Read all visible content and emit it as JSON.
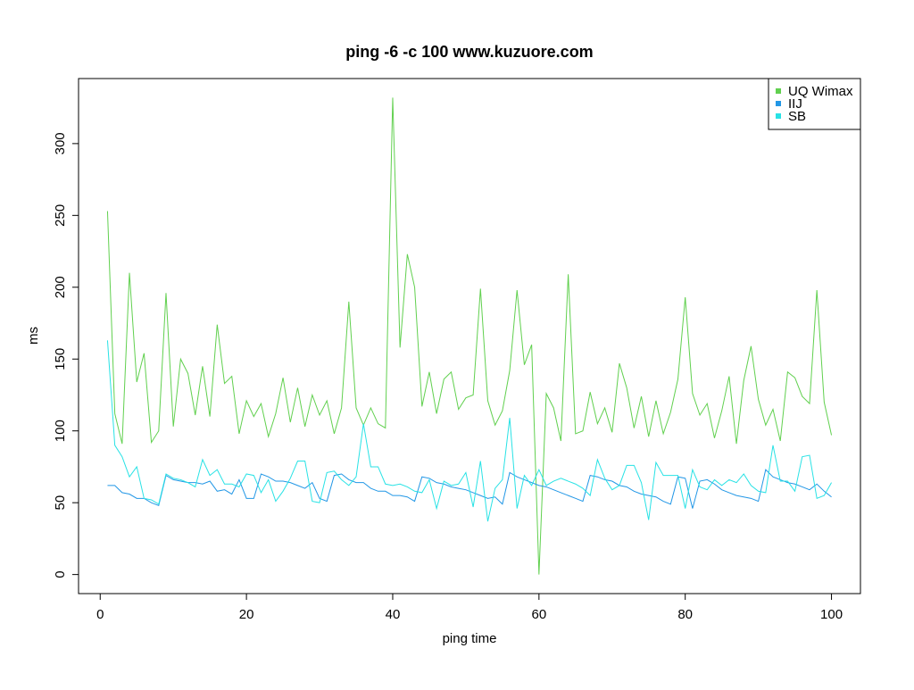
{
  "chart_data": {
    "type": "line",
    "title": "ping -6 -c 100 www.kuzuore.com",
    "x_label": "ping time",
    "y_label": "ms",
    "x": [
      1,
      2,
      3,
      4,
      5,
      6,
      7,
      8,
      9,
      10,
      11,
      12,
      13,
      14,
      15,
      16,
      17,
      18,
      19,
      20,
      21,
      22,
      23,
      24,
      25,
      26,
      27,
      28,
      29,
      30,
      31,
      32,
      33,
      34,
      35,
      36,
      37,
      38,
      39,
      40,
      41,
      42,
      43,
      44,
      45,
      46,
      47,
      48,
      49,
      50,
      51,
      52,
      53,
      54,
      55,
      56,
      57,
      58,
      59,
      60,
      61,
      62,
      63,
      64,
      65,
      66,
      67,
      68,
      69,
      70,
      71,
      72,
      73,
      74,
      75,
      76,
      77,
      78,
      79,
      80,
      81,
      82,
      83,
      84,
      85,
      86,
      87,
      88,
      89,
      90,
      91,
      92,
      93,
      94,
      95,
      96,
      97,
      98,
      99,
      100
    ],
    "series": [
      {
        "name": "UQ Wimax",
        "color": "#61d04f",
        "values": [
          253,
          112,
          91,
          210,
          134,
          154,
          92,
          100,
          196,
          103,
          150,
          140,
          111,
          145,
          110,
          174,
          133,
          138,
          98,
          121,
          110,
          119,
          96,
          112,
          137,
          106,
          130,
          103,
          125,
          111,
          121,
          98,
          116,
          190,
          116,
          104,
          116,
          105,
          102,
          332,
          158,
          223,
          200,
          117,
          141,
          112,
          136,
          141,
          115,
          123,
          125,
          199,
          121,
          104,
          114,
          142,
          198,
          146,
          160,
          0,
          126,
          116,
          93,
          209,
          98,
          100,
          127,
          105,
          116,
          99,
          147,
          130,
          102,
          124,
          96,
          121,
          98,
          113,
          136,
          193,
          126,
          111,
          119,
          95,
          114,
          138,
          91,
          135,
          159,
          122,
          104,
          115,
          93,
          141,
          137,
          124,
          119,
          198,
          120,
          97
        ]
      },
      {
        "name": "IIJ",
        "color": "#2297e6",
        "values": [
          62,
          62,
          57,
          56,
          53,
          53,
          50,
          48,
          69,
          66,
          65,
          64,
          64,
          63,
          65,
          58,
          59,
          56,
          66,
          53,
          53,
          70,
          68,
          65,
          65,
          64,
          62,
          60,
          64,
          53,
          51,
          69,
          70,
          66,
          64,
          64,
          60,
          58,
          58,
          55,
          55,
          54,
          51,
          68,
          67,
          64,
          63,
          61,
          60,
          59,
          57,
          55,
          53,
          54,
          49,
          71,
          68,
          66,
          64,
          62,
          61,
          59,
          57,
          55,
          53,
          51,
          69,
          68,
          66,
          65,
          62,
          61,
          58,
          56,
          55,
          54,
          51,
          49,
          68,
          67,
          46,
          65,
          66,
          63,
          59,
          57,
          55,
          54,
          53,
          51,
          73,
          68,
          66,
          64,
          63,
          61,
          59,
          63,
          58,
          54
        ]
      },
      {
        "name": "SB",
        "color": "#28e2e5",
        "values": [
          163,
          90,
          82,
          68,
          75,
          53,
          52,
          49,
          70,
          67,
          66,
          64,
          61,
          80,
          69,
          73,
          63,
          63,
          61,
          70,
          69,
          57,
          66,
          51,
          58,
          67,
          79,
          79,
          51,
          50,
          71,
          72,
          66,
          62,
          68,
          105,
          75,
          75,
          63,
          62,
          63,
          61,
          58,
          57,
          66,
          46,
          65,
          62,
          63,
          71,
          47,
          79,
          37,
          60,
          66,
          109,
          46,
          69,
          62,
          73,
          62,
          65,
          67,
          65,
          63,
          60,
          55,
          80,
          67,
          59,
          62,
          76,
          76,
          64,
          38,
          78,
          69,
          69,
          69,
          46,
          73,
          61,
          59,
          66,
          62,
          66,
          64,
          70,
          62,
          58,
          57,
          90,
          65,
          65,
          58,
          82,
          83,
          53,
          55,
          64
        ]
      }
    ],
    "xlim": [
      -2.96,
      103.96
    ],
    "ylim": [
      -13.28,
      345.28
    ],
    "xticks": [
      0,
      20,
      40,
      60,
      80,
      100
    ],
    "yticks": [
      0,
      50,
      100,
      150,
      200,
      250,
      300
    ],
    "legend": "top-right"
  }
}
